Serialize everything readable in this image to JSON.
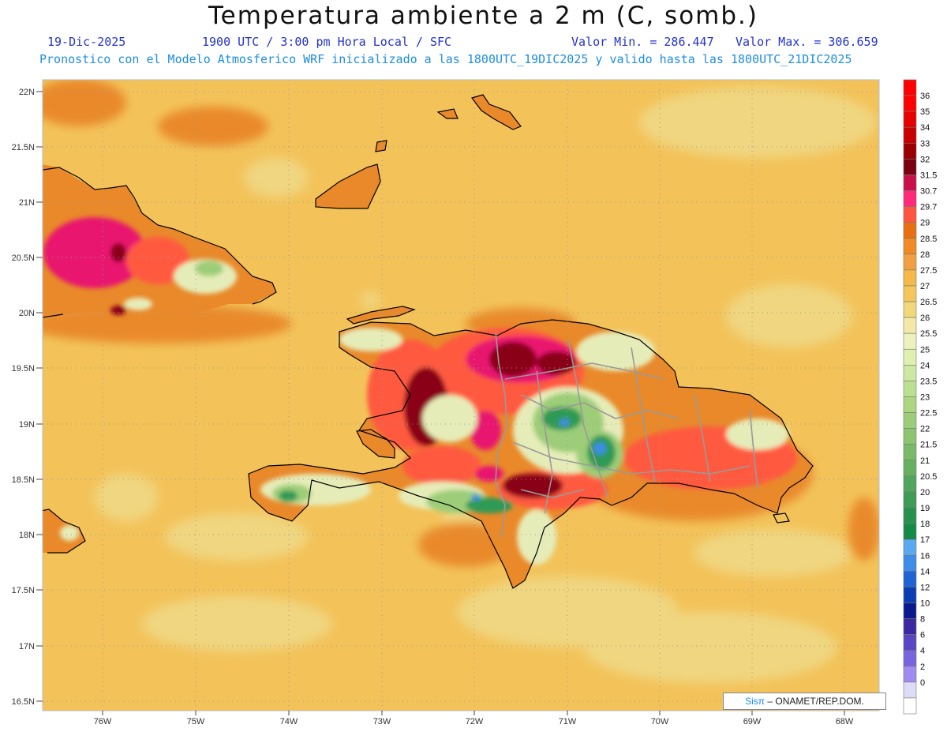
{
  "header": {
    "title": "Temperatura ambiente a 2 m (C, somb.)",
    "date": "19-Dic-2025",
    "valid_time": "1900 UTC / 3:00 pm Hora Local / SFC",
    "min_value": "Valor Min. = 286.447",
    "max_value": "Valor Max. = 306.659",
    "model_info": "Pronostico con el Modelo Atmosferico WRF inicializado a las 1800UTC_19DIC2025 y valido hasta las  1800UTC_21DIC2025"
  },
  "axes": {
    "lat_labels": [
      "22N",
      "21.5N",
      "21N",
      "20.5N",
      "20N",
      "19.5N",
      "19N",
      "18.5N",
      "18N",
      "17.5N",
      "17N",
      "16.5N"
    ],
    "lon_labels": [
      "76W",
      "75W",
      "74W",
      "73W",
      "72W",
      "71W",
      "70W",
      "69W",
      "68W"
    ]
  },
  "colorbar": {
    "labels": [
      "36",
      "35",
      "34",
      "33",
      "32",
      "31.5",
      "30.7",
      "29.7",
      "29",
      "28.5",
      "28",
      "27.5",
      "27",
      "26.5",
      "26",
      "25.5",
      "25",
      "24",
      "23.5",
      "23",
      "22.5",
      "22",
      "21.5",
      "21",
      "20.5",
      "20",
      "19",
      "18",
      "17",
      "16",
      "14",
      "12",
      "10",
      "8",
      "6",
      "4",
      "2",
      "0"
    ],
    "colors": [
      "#ff0000",
      "#e60000",
      "#c80000",
      "#9a0000",
      "#7a0010",
      "#c8104a",
      "#ff2a7a",
      "#ff5540",
      "#e87010",
      "#ef8a25",
      "#f0a040",
      "#f5b94a",
      "#f5c75a",
      "#f0d97a",
      "#f3e8a8",
      "#eef0c0",
      "#dff0b0",
      "#cde8a0",
      "#bde090",
      "#add680",
      "#9dcd78",
      "#8cc470",
      "#78ba68",
      "#66b062",
      "#50a65c",
      "#3d9c55",
      "#26924e",
      "#148a47",
      "#5aa8f0",
      "#3c8ce8",
      "#1e64d2",
      "#0a3cb4",
      "#0a1a8c",
      "#3c28a0",
      "#5a46c3",
      "#7864dc",
      "#a08cf0",
      "#dcdcf8"
    ],
    "top_color": "#ff0000",
    "bottom_color": "#ffffff"
  },
  "credit": {
    "logo": "Sisπ",
    "text": "– ONAMET/REP.DOM."
  },
  "palette": {
    "sea": "#f3c35a",
    "sea_pale": "#f0d680",
    "warm": "#e9892a",
    "hot": "#ff5a40",
    "hotter": "#e8186e",
    "hottest": "#8a0018",
    "cool_pale": "#e6ecb8",
    "cool": "#9dcd78",
    "green": "#2f9a55",
    "blue": "#3c8ce8",
    "border": "#999999"
  }
}
